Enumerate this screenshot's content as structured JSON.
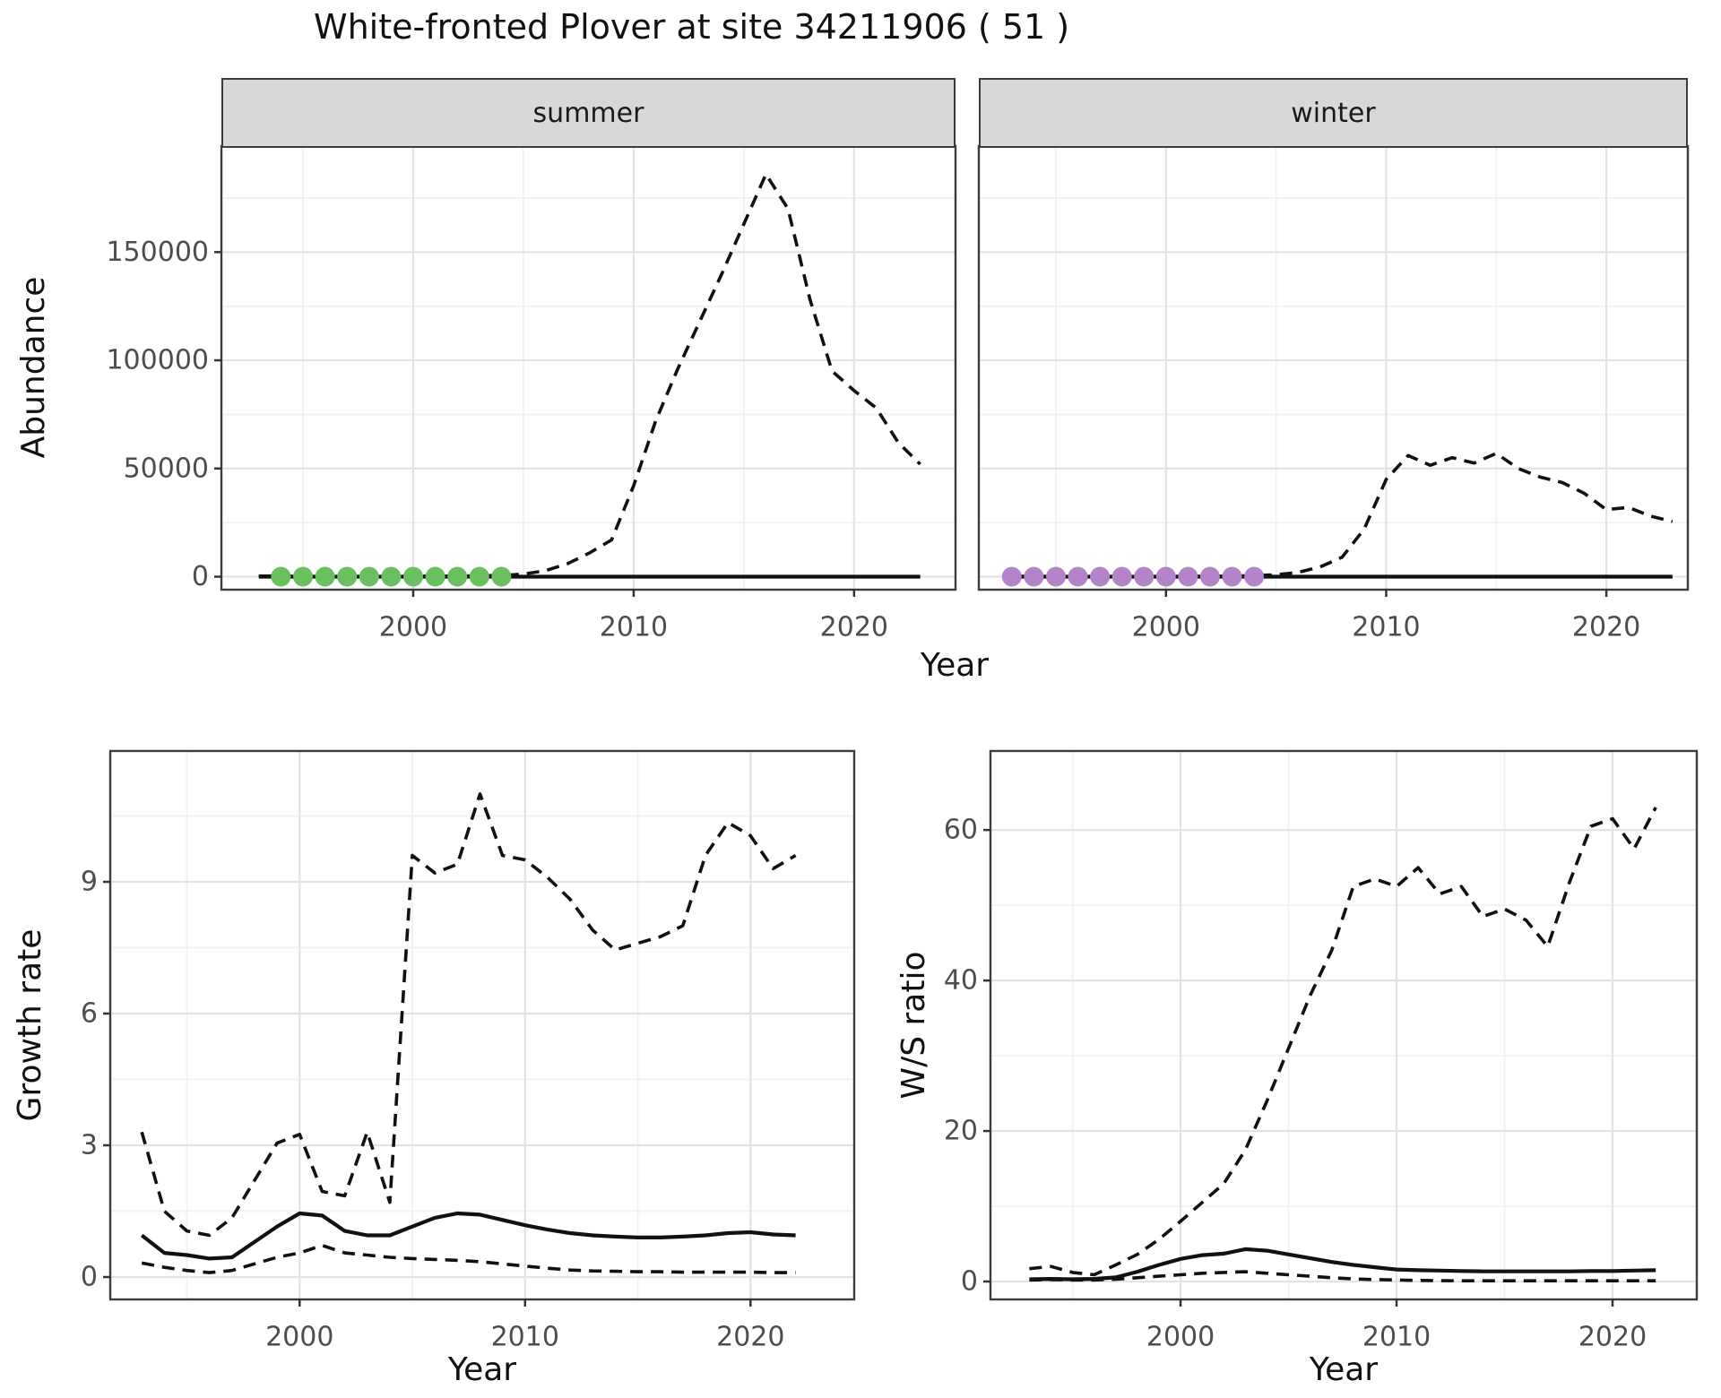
{
  "title": "White-fronted Plover at site 34211906 ( 51 )",
  "labels": {
    "abundance": "Abundance",
    "growth": "Growth rate",
    "ws": "W/S ratio",
    "year": "Year"
  },
  "colors": {
    "summer_points": "#6abf5f",
    "winter_points": "#b385c8",
    "line": "#111111",
    "grid_major": "#e3e3e3",
    "grid_minor": "#f2f2f2",
    "panel_border": "#3c3c3c",
    "strip_bg": "#d8d8d8",
    "tick_mark": "#333333",
    "tick_label": "#4d4d4d"
  },
  "chart_data": [
    {
      "type": "line",
      "facet": "summer",
      "ylabel": "Abundance",
      "xlabel": "Year",
      "show_y_labels": true,
      "xlim": [
        1991.3,
        2024.6
      ],
      "ylim": [
        -6000,
        199000
      ],
      "x_ticks": [
        2000,
        2010,
        2020
      ],
      "x_minor": [
        1995,
        2005,
        2015
      ],
      "y_ticks": [
        0,
        50000,
        100000,
        150000
      ],
      "y_minor": [
        25000,
        75000,
        125000,
        175000
      ],
      "series": [
        {
          "name": "upper_ci",
          "kind": "line",
          "dashed": true,
          "x": [
            1993,
            1994,
            1995,
            1996,
            1997,
            1998,
            1999,
            2000,
            2001,
            2002,
            2003,
            2004,
            2005,
            2006,
            2007,
            2008,
            2009,
            2010,
            2011,
            2012,
            2013,
            2014,
            2015,
            2016,
            2017,
            2018,
            2019,
            2020,
            2021,
            2022,
            2023
          ],
          "y": [
            300,
            300,
            300,
            300,
            300,
            300,
            300,
            300,
            300,
            300,
            400,
            600,
            1200,
            2800,
            6000,
            11000,
            17000,
            42000,
            72000,
            96000,
            118000,
            140000,
            163000,
            186000,
            170000,
            128000,
            95000,
            86000,
            78000,
            62000,
            52000
          ]
        },
        {
          "name": "lower_ci",
          "kind": "line",
          "dashed": true,
          "x": [
            1993,
            1994,
            1995,
            1996,
            1997,
            1998,
            1999,
            2000,
            2001,
            2002,
            2003,
            2004,
            2005,
            2006,
            2007,
            2008,
            2009,
            2010,
            2011,
            2012,
            2013,
            2014,
            2015,
            2016,
            2017,
            2018,
            2019,
            2020,
            2021,
            2022,
            2023
          ],
          "y": [
            0,
            0,
            0,
            0,
            0,
            0,
            0,
            0,
            0,
            0,
            0,
            0,
            0,
            0,
            0,
            0,
            0,
            0,
            0,
            0,
            0,
            0,
            0,
            0,
            0,
            0,
            0,
            0,
            0,
            0,
            0
          ]
        },
        {
          "name": "mean",
          "kind": "line",
          "dashed": false,
          "x": [
            1993,
            1994,
            1995,
            1996,
            1997,
            1998,
            1999,
            2000,
            2001,
            2002,
            2003,
            2004,
            2005,
            2006,
            2007,
            2008,
            2009,
            2010,
            2011,
            2012,
            2013,
            2014,
            2015,
            2016,
            2017,
            2018,
            2019,
            2020,
            2021,
            2022,
            2023
          ],
          "y": [
            0,
            0,
            0,
            0,
            0,
            0,
            0,
            0,
            0,
            0,
            0,
            0,
            0,
            0,
            0,
            0,
            0,
            0,
            0,
            0,
            0,
            0,
            0,
            0,
            0,
            0,
            0,
            0,
            0,
            0,
            0
          ]
        },
        {
          "name": "observed",
          "kind": "points",
          "color": "#6abf5f",
          "x": [
            1994,
            1995,
            1996,
            1997,
            1998,
            1999,
            2000,
            2001,
            2002,
            2003,
            2004
          ],
          "y": [
            0,
            0,
            0,
            0,
            0,
            0,
            0,
            0,
            0,
            0,
            0
          ]
        }
      ]
    },
    {
      "type": "line",
      "facet": "winter",
      "ylabel": "Abundance",
      "xlabel": "Year",
      "show_y_labels": false,
      "xlim": [
        1991.5,
        2023.7
      ],
      "ylim": [
        -6000,
        199000
      ],
      "x_ticks": [
        2000,
        2010,
        2020
      ],
      "x_minor": [
        1995,
        2005,
        2015
      ],
      "y_ticks": [
        0,
        50000,
        100000,
        150000
      ],
      "y_minor": [
        25000,
        75000,
        125000,
        175000
      ],
      "series": [
        {
          "name": "upper_ci",
          "kind": "line",
          "dashed": true,
          "x": [
            1993,
            1994,
            1995,
            1996,
            1997,
            1998,
            1999,
            2000,
            2001,
            2002,
            2003,
            2004,
            2005,
            2006,
            2007,
            2008,
            2009,
            2010,
            2011,
            2012,
            2013,
            2014,
            2015,
            2016,
            2017,
            2018,
            2019,
            2020,
            2021,
            2022,
            2023
          ],
          "y": [
            200,
            200,
            200,
            200,
            200,
            200,
            200,
            200,
            200,
            200,
            300,
            500,
            900,
            2000,
            4500,
            9000,
            22000,
            45000,
            56000,
            51500,
            55000,
            52500,
            57000,
            50000,
            46000,
            43500,
            38500,
            31000,
            32000,
            28000,
            25500
          ]
        },
        {
          "name": "lower_ci",
          "kind": "line",
          "dashed": true,
          "x": [
            1993,
            1994,
            1995,
            1996,
            1997,
            1998,
            1999,
            2000,
            2001,
            2002,
            2003,
            2004,
            2005,
            2006,
            2007,
            2008,
            2009,
            2010,
            2011,
            2012,
            2013,
            2014,
            2015,
            2016,
            2017,
            2018,
            2019,
            2020,
            2021,
            2022,
            2023
          ],
          "y": [
            0,
            0,
            0,
            0,
            0,
            0,
            0,
            0,
            0,
            0,
            0,
            0,
            0,
            0,
            0,
            0,
            0,
            0,
            0,
            0,
            0,
            0,
            0,
            0,
            0,
            0,
            0,
            0,
            0,
            0,
            0
          ]
        },
        {
          "name": "mean",
          "kind": "line",
          "dashed": false,
          "x": [
            1993,
            1994,
            1995,
            1996,
            1997,
            1998,
            1999,
            2000,
            2001,
            2002,
            2003,
            2004,
            2005,
            2006,
            2007,
            2008,
            2009,
            2010,
            2011,
            2012,
            2013,
            2014,
            2015,
            2016,
            2017,
            2018,
            2019,
            2020,
            2021,
            2022,
            2023
          ],
          "y": [
            0,
            0,
            0,
            0,
            0,
            0,
            0,
            0,
            0,
            0,
            0,
            0,
            0,
            0,
            0,
            0,
            0,
            0,
            0,
            0,
            0,
            0,
            0,
            0,
            0,
            0,
            0,
            0,
            0,
            0,
            0
          ]
        },
        {
          "name": "observed",
          "kind": "points",
          "color": "#b385c8",
          "x": [
            1993,
            1994,
            1995,
            1996,
            1997,
            1998,
            1999,
            2000,
            2001,
            2002,
            2003,
            2004
          ],
          "y": [
            0,
            0,
            0,
            0,
            0,
            0,
            0,
            0,
            0,
            0,
            0,
            0
          ]
        }
      ]
    },
    {
      "type": "line",
      "facet": "",
      "ylabel": "Growth rate",
      "xlabel": "Year",
      "show_y_labels": true,
      "xlim": [
        1991.6,
        2024.6
      ],
      "ylim": [
        -0.51,
        11.98
      ],
      "x_ticks": [
        2000,
        2010,
        2020
      ],
      "x_minor": [
        1995,
        2005,
        2015
      ],
      "y_ticks": [
        0,
        3,
        6,
        9
      ],
      "y_minor": [
        1.5,
        4.5,
        7.5,
        10.5
      ],
      "series": [
        {
          "name": "upper_ci",
          "kind": "line",
          "dashed": true,
          "x": [
            1993,
            1994,
            1995,
            1996,
            1997,
            1998,
            1999,
            2000,
            2001,
            2002,
            2003,
            2004,
            2005,
            2006,
            2007,
            2008,
            2009,
            2010,
            2011,
            2012,
            2013,
            2014,
            2015,
            2016,
            2017,
            2018,
            2019,
            2020,
            2021,
            2022
          ],
          "y": [
            3.3,
            1.5,
            1.05,
            0.95,
            1.35,
            2.2,
            3.05,
            3.25,
            1.95,
            1.85,
            3.3,
            1.7,
            9.6,
            9.2,
            9.4,
            11.0,
            9.6,
            9.5,
            9.1,
            8.6,
            7.9,
            7.45,
            7.6,
            7.75,
            8.0,
            9.6,
            10.35,
            10.05,
            9.3,
            9.6
          ]
        },
        {
          "name": "lower_ci",
          "kind": "line",
          "dashed": true,
          "x": [
            1993,
            1994,
            1995,
            1996,
            1997,
            1998,
            1999,
            2000,
            2001,
            2002,
            2003,
            2004,
            2005,
            2006,
            2007,
            2008,
            2009,
            2010,
            2011,
            2012,
            2013,
            2014,
            2015,
            2016,
            2017,
            2018,
            2019,
            2020,
            2021,
            2022
          ],
          "y": [
            0.32,
            0.22,
            0.15,
            0.1,
            0.15,
            0.3,
            0.45,
            0.55,
            0.72,
            0.55,
            0.5,
            0.45,
            0.42,
            0.4,
            0.38,
            0.35,
            0.3,
            0.25,
            0.2,
            0.16,
            0.14,
            0.13,
            0.12,
            0.12,
            0.11,
            0.11,
            0.11,
            0.11,
            0.1,
            0.1
          ]
        },
        {
          "name": "mean",
          "kind": "line",
          "dashed": false,
          "x": [
            1993,
            1994,
            1995,
            1996,
            1997,
            1998,
            1999,
            2000,
            2001,
            2002,
            2003,
            2004,
            2005,
            2006,
            2007,
            2008,
            2009,
            2010,
            2011,
            2012,
            2013,
            2014,
            2015,
            2016,
            2017,
            2018,
            2019,
            2020,
            2021,
            2022
          ],
          "y": [
            0.95,
            0.55,
            0.5,
            0.42,
            0.45,
            0.8,
            1.15,
            1.45,
            1.4,
            1.05,
            0.95,
            0.95,
            1.15,
            1.35,
            1.45,
            1.42,
            1.3,
            1.18,
            1.08,
            1.0,
            0.95,
            0.92,
            0.9,
            0.9,
            0.92,
            0.95,
            1.0,
            1.02,
            0.97,
            0.95
          ]
        }
      ]
    },
    {
      "type": "line",
      "facet": "",
      "ylabel": "W/S ratio",
      "xlabel": "Year",
      "show_y_labels": true,
      "xlim": [
        1991.2,
        2023.9
      ],
      "ylim": [
        -2.38,
        70.5
      ],
      "x_ticks": [
        2000,
        2010,
        2020
      ],
      "x_minor": [
        1995,
        2005,
        2015
      ],
      "y_ticks": [
        0,
        20,
        40,
        60
      ],
      "y_minor": [
        10,
        30,
        50
      ],
      "series": [
        {
          "name": "upper_ci",
          "kind": "line",
          "dashed": true,
          "x": [
            1993,
            1994,
            1995,
            1996,
            1997,
            1998,
            1999,
            2000,
            2001,
            2002,
            2003,
            2004,
            2005,
            2006,
            2007,
            2008,
            2009,
            2010,
            2011,
            2012,
            2013,
            2014,
            2015,
            2016,
            2017,
            2018,
            2019,
            2020,
            2021,
            2022
          ],
          "y": [
            1.7,
            2.0,
            1.2,
            0.9,
            2.2,
            3.6,
            5.6,
            8.0,
            10.5,
            13.0,
            17.5,
            24,
            31,
            38,
            44,
            52.5,
            53.5,
            52.5,
            55,
            51.5,
            52.5,
            48.5,
            49.5,
            48,
            44.5,
            53,
            60.5,
            61.5,
            57.5,
            63
          ]
        },
        {
          "name": "lower_ci",
          "kind": "line",
          "dashed": true,
          "x": [
            1993,
            1994,
            1995,
            1996,
            1997,
            1998,
            1999,
            2000,
            2001,
            2002,
            2003,
            2004,
            2005,
            2006,
            2007,
            2008,
            2009,
            2010,
            2011,
            2012,
            2013,
            2014,
            2015,
            2016,
            2017,
            2018,
            2019,
            2020,
            2021,
            2022
          ],
          "y": [
            0.2,
            0.25,
            0.2,
            0.2,
            0.3,
            0.5,
            0.7,
            0.9,
            1.1,
            1.2,
            1.3,
            1.1,
            0.9,
            0.7,
            0.5,
            0.35,
            0.25,
            0.2,
            0.15,
            0.12,
            0.1,
            0.1,
            0.1,
            0.1,
            0.1,
            0.1,
            0.1,
            0.1,
            0.1,
            0.1
          ]
        },
        {
          "name": "mean",
          "kind": "line",
          "dashed": false,
          "x": [
            1993,
            1994,
            1995,
            1996,
            1997,
            1998,
            1999,
            2000,
            2001,
            2002,
            2003,
            2004,
            2005,
            2006,
            2007,
            2008,
            2009,
            2010,
            2011,
            2012,
            2013,
            2014,
            2015,
            2016,
            2017,
            2018,
            2019,
            2020,
            2021,
            2022
          ],
          "y": [
            0.3,
            0.35,
            0.3,
            0.35,
            0.55,
            1.3,
            2.2,
            3.0,
            3.5,
            3.7,
            4.3,
            4.1,
            3.6,
            3.1,
            2.6,
            2.2,
            1.9,
            1.6,
            1.5,
            1.45,
            1.4,
            1.35,
            1.35,
            1.35,
            1.35,
            1.35,
            1.4,
            1.4,
            1.45,
            1.5
          ]
        }
      ]
    }
  ]
}
